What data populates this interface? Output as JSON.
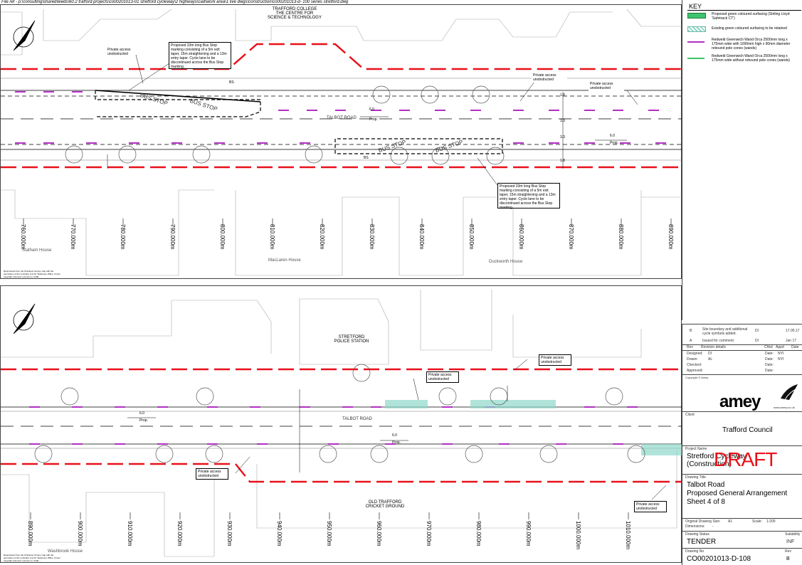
{
  "file_ref": "File ref - p:\\consulting\\shared\\leeds\\60.2 trafford projects\\co00201013-01 stretford cycleway\\2 highways\\cad\\work area\\1 live dwgs\\construction\\co00201013-d- 100 series stretford.dwg",
  "colors": {
    "red_line": "#e8111a",
    "magenta": "#b12fc2",
    "green": "#3ec46d",
    "hatch": "#8fd7c9"
  },
  "upper_plan": {
    "college": "TRAFFORD COLLEGE\nTHE CENTRE FOR\nSCIENCE & TECHNOLOGY",
    "access_left": "Private access\nunobstructed",
    "access_right1": "Private access\nunobstructed",
    "access_right2": "Private access\nunobstructed",
    "busstop_note1": "Proposed 33m long Bus Stop marking consisting of a 5m exit taper, 15m straightening and a 13m entry taper. Cycle lane to be discontinued across the Bus Stop marking.",
    "busstop_note2": "Proposed 33m long Bus Stop marking consisting of a 5m exit taper, 15m straightening and a 13m entry taper. Cycle lane to be discontinued across the Bus Stop marking.",
    "road": "TALBOT ROAD",
    "bus_stop": "BUS STOP",
    "bs": "BS",
    "dim_6": "6.0",
    "prop": "Prop.",
    "dim_18": "1.8",
    "dim_33": "3.3",
    "chainages": [
      "760.000m",
      "770.000m",
      "780.000m",
      "790.000m",
      "800.000m",
      "810.000m",
      "820.000m",
      "830.000m",
      "840.000m",
      "850.000m",
      "860.000m",
      "870.000m",
      "880.000m",
      "890.000m"
    ],
    "buildings": [
      "Statham House",
      "MacLaren House",
      "Duckworth House"
    ],
    "copyright": "Reproduced from the Ordnance Survey map with the permission of the controller of H.M. Stationery Office. Crown copyright reserved. Licence no. 0100...."
  },
  "lower_plan": {
    "police": "STRETFORD\nPOLICE STATION",
    "cricket": "OLD TRAFFORD\nCRICKET GROUND",
    "access1": "Private access\nunobstructed",
    "access2": "Private access\nunobstructed",
    "access3": "Private access\nunobstructed",
    "access4": "Private access\nunobstructed",
    "road": "TALBOT ROAD",
    "dim_6": "6.0",
    "prop": "Prop.",
    "chainages": [
      "890.000m",
      "900.000m",
      "910.000m",
      "920.000m",
      "930.000m",
      "940.000m",
      "950.000m",
      "960.000m",
      "970.000m",
      "980.000m",
      "990.000m",
      "1000.000m",
      "1010.000m"
    ],
    "buildings": [
      "Washbrook House"
    ],
    "copyright": "Reproduced from the Ordnance Survey map with the permission of the controller of H.M. Stationery Office. Crown copyright reserved. Licence no. 0100...."
  },
  "key": {
    "title": "KEY",
    "items": [
      {
        "text": "Proposed green coloured surfacing (Stirling Lloyd 'Safetrack CT')"
      },
      {
        "text": "Existing green coloured surfacing to be retained"
      },
      {
        "text": "Redweld Greenwich Wand Orca 2500mm long x 175mm wide with 1000mm high x 90mm diameter rebound pole cones (wands)"
      },
      {
        "text": "Redweld Greenwich Wand Orca 2500mm long x 175mm wide without rebound pole cones (wands)"
      }
    ]
  },
  "title_block": {
    "revisions": [
      {
        "rev": "B",
        "details": "Site boundary and additional cycle symbols added.",
        "chkd": "DI",
        "date": "17.05.17"
      },
      {
        "rev": "A",
        "details": "Issued for comment",
        "chkd": "DI",
        "date": "Jan 17"
      }
    ],
    "rev_headers": {
      "rev": "Rev",
      "details": "Revision details",
      "chkd": "Chkd",
      "appd": "Appd",
      "date": "Date"
    },
    "designed": {
      "label": "Designed:",
      "value": "DI",
      "date_label": "Date:",
      "date": "NYI"
    },
    "drawn": {
      "label": "Drawn:",
      "value": "AL",
      "date_label": "Date:",
      "date": "NYI"
    },
    "checked": {
      "label": "Checked:",
      "date_label": "Date:"
    },
    "approved": {
      "label": "Approved:",
      "date_label": "Date:"
    },
    "copyright_amey": "Copyright © Amey",
    "logo": "amey",
    "web": "www.amey.co.uk",
    "client_label": "Client",
    "client": "Trafford Council",
    "project_label": "Project Name",
    "project": "Stretford Cycleway\n(Construction)",
    "draft": "DRAFT",
    "drawing_title_label": "Drawing Title",
    "drawing_title": "Talbot Road\nProposed General Arrangement\nSheet 4 of 8",
    "orig_size_label": "Original Drawing Size:",
    "orig_size": "A1",
    "scale_label": "Scale:",
    "scale": "1:200",
    "dimensions_label": "Dimensions:",
    "dimensions": "-",
    "status_label": "Drawing Status",
    "status": "TENDER",
    "suitability_label": "Suitability",
    "suitability": "INF",
    "drawing_no_label": "Drawing No",
    "drawing_no": "CO00201013-D-108",
    "rev_label": "Rev",
    "rev": "B"
  }
}
